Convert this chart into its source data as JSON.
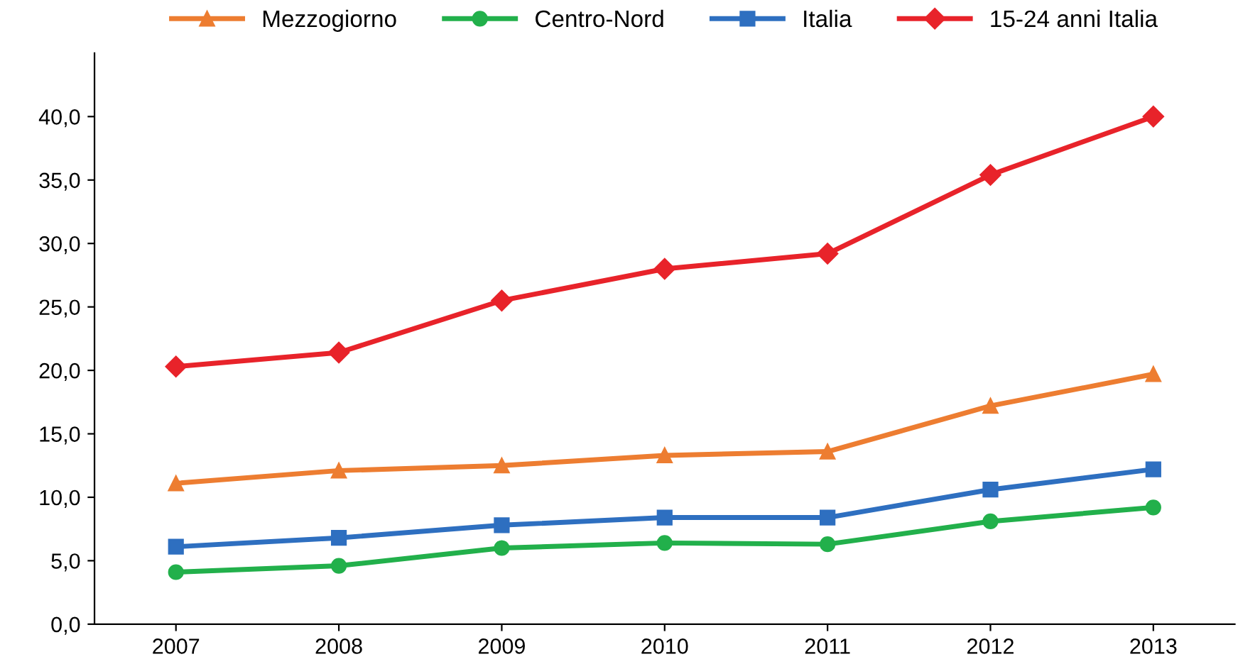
{
  "chart_data": {
    "type": "line",
    "categories": [
      "2007",
      "2008",
      "2009",
      "2010",
      "2011",
      "2012",
      "2013"
    ],
    "series": [
      {
        "name": "Mezzogiorno",
        "color": "#ed7d31",
        "marker": "triangle",
        "values": [
          11.1,
          12.1,
          12.5,
          13.3,
          13.6,
          17.2,
          19.7
        ]
      },
      {
        "name": "Centro-Nord",
        "color": "#22b04b",
        "marker": "circle",
        "values": [
          4.1,
          4.6,
          6.0,
          6.4,
          6.3,
          8.1,
          9.2
        ]
      },
      {
        "name": "Italia",
        "color": "#2e6fc0",
        "marker": "square",
        "values": [
          6.1,
          6.8,
          7.8,
          8.4,
          8.4,
          10.6,
          12.2
        ]
      },
      {
        "name": "15-24 anni Italia",
        "color": "#e8232a",
        "marker": "diamond",
        "values": [
          20.3,
          21.4,
          25.5,
          28.0,
          29.2,
          35.4,
          40.0
        ]
      }
    ],
    "ylim": [
      0,
      45
    ],
    "yticks": [
      {
        "value": 0,
        "label": "0,0"
      },
      {
        "value": 5,
        "label": "5,0"
      },
      {
        "value": 10,
        "label": "10,0"
      },
      {
        "value": 15,
        "label": "15,0"
      },
      {
        "value": 20,
        "label": "20,0"
      },
      {
        "value": 25,
        "label": "25,0"
      },
      {
        "value": 30,
        "label": "30,0"
      },
      {
        "value": 35,
        "label": "35,0"
      },
      {
        "value": 40,
        "label": "40,0"
      }
    ],
    "grid": false,
    "legend": "top",
    "line_style": "solid"
  }
}
